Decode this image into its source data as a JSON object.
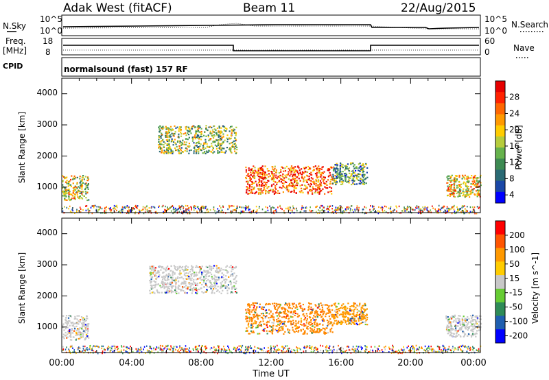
{
  "header": {
    "station": "Adak West (fitACF)",
    "beam": "Beam 11",
    "date": "22/Aug/2015"
  },
  "status_panels": {
    "nsky_label": "N.Sky",
    "nsearch_label": "N.Search",
    "nsky_ticks": [
      "10^5",
      "10^0"
    ],
    "nsearch_ticks": [
      "10^5",
      "10^0"
    ],
    "freq_label": "Freq.",
    "freq_unit": "[MHz]",
    "freq_ticks": [
      "18",
      "8"
    ],
    "nave_label": "Nave",
    "nave_ticks": [
      "60",
      "0"
    ],
    "cpid_label": "CPID",
    "cpid_text": "normalsound (fast) 157 RF"
  },
  "time_axis": {
    "label": "Time UT",
    "ticks": [
      "00:00",
      "04:00",
      "08:00",
      "12:00",
      "16:00",
      "20:00",
      "00:00"
    ]
  },
  "chart_data": [
    {
      "type": "heatmap",
      "ylabel": "Slant Range [km]",
      "yticks": [
        "4000",
        "3000",
        "2000",
        "1000"
      ],
      "colorbar_label": "Power [dB]",
      "colorbar_ticks": [
        "28",
        "24",
        "20",
        "16",
        "12",
        "8",
        "4"
      ],
      "colorscale": [
        "#0000ff",
        "#1a47a6",
        "#2a6a74",
        "#3d8a52",
        "#66b24c",
        "#b6cc3c",
        "#ffcc00",
        "#ff9900",
        "#ff6600",
        "#ff2200",
        "#e60000"
      ],
      "x_range_hours": [
        0,
        24
      ],
      "y_range_km": [
        180,
        4500
      ],
      "regions": [
        {
          "t": [
            0.0,
            1.5
          ],
          "r": [
            600,
            1400
          ],
          "level": 0.55
        },
        {
          "t": [
            5.5,
            10.0
          ],
          "r": [
            2100,
            3000
          ],
          "level": 0.45
        },
        {
          "t": [
            10.5,
            15.5
          ],
          "r": [
            800,
            1700
          ],
          "level": 0.8
        },
        {
          "t": [
            15.5,
            17.5
          ],
          "r": [
            1100,
            1800
          ],
          "level": 0.35
        },
        {
          "t": [
            22.0,
            24.0
          ],
          "r": [
            700,
            1400
          ],
          "level": 0.6
        }
      ]
    },
    {
      "type": "heatmap",
      "ylabel": "Slant Range [km]",
      "yticks": [
        "4000",
        "3000",
        "2000",
        "1000"
      ],
      "colorbar_label": "Velocity [m s^-1]",
      "colorbar_ticks": [
        "200",
        "100",
        "50",
        "15",
        "-15",
        "-50",
        "-100",
        "-200"
      ],
      "colorscale": [
        "#0000ff",
        "#1f5fb0",
        "#2e8b57",
        "#66cc33",
        "#c8c8c8",
        "#ffcc00",
        "#ff9900",
        "#ff5500",
        "#ff0000"
      ],
      "x_range_hours": [
        0,
        24
      ],
      "y_range_km": [
        180,
        4500
      ],
      "regions": [
        {
          "t": [
            0.0,
            1.5
          ],
          "r": [
            600,
            1400
          ],
          "color": "#c8c8c8"
        },
        {
          "t": [
            5.0,
            10.0
          ],
          "r": [
            2100,
            3000
          ],
          "color": "#c8c8c8"
        },
        {
          "t": [
            10.5,
            15.5
          ],
          "r": [
            800,
            1800
          ],
          "color": "#ff8800"
        },
        {
          "t": [
            15.5,
            17.5
          ],
          "r": [
            1100,
            1800
          ],
          "color": "#ff9900"
        },
        {
          "t": [
            22.0,
            24.0
          ],
          "r": [
            700,
            1400
          ],
          "color": "#c8c8c8"
        }
      ]
    }
  ]
}
